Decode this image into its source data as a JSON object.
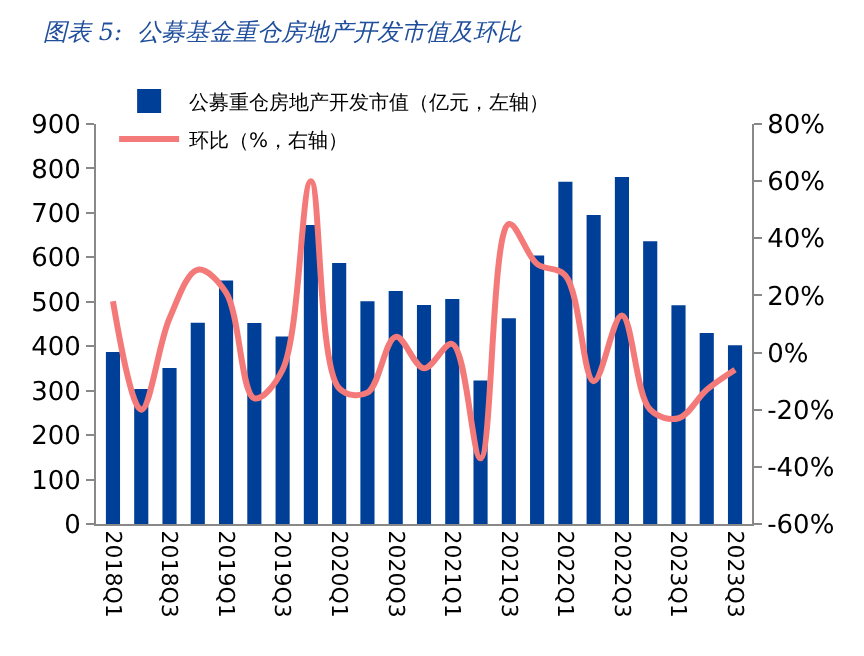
{
  "chart_data": {
    "type": "bar",
    "title": "图表 5:  公募基金重仓房地产开发市值及环比",
    "categories": [
      "2018Q1",
      null,
      "2018Q3",
      null,
      "2019Q1",
      null,
      "2019Q3",
      null,
      "2020Q1",
      null,
      "2020Q3",
      null,
      "2021Q1",
      null,
      "2021Q3",
      null,
      "2022Q1",
      null,
      "2022Q3",
      null,
      "2023Q1",
      null,
      "2023Q3"
    ],
    "series": [
      {
        "name": "公募重仓房地产开发市值（亿元，左轴）",
        "color": "#003f98",
        "values": [
          387,
          304,
          351,
          453,
          548,
          452,
          422,
          673,
          587,
          501,
          524,
          493,
          506,
          323,
          463,
          604,
          770,
          695,
          781,
          636,
          492,
          430,
          402
        ]
      },
      {
        "name": "环比（%，右轴）",
        "type": "line",
        "axis": "y2",
        "color": "#f47a7a",
        "values": [
          18,
          -20,
          12,
          29,
          21,
          -16,
          -6,
          60,
          -12.5,
          -14,
          5.5,
          -5.5,
          3,
          -37,
          45,
          31,
          27,
          -10,
          13,
          -20,
          -23,
          -13,
          -6
        ]
      }
    ],
    "ylim": [
      0,
      900
    ],
    "yticks": [
      0,
      100,
      200,
      300,
      400,
      500,
      600,
      700,
      800,
      900
    ],
    "y2lim": [
      -60,
      80
    ],
    "y2ticks": [
      {
        "value": -60,
        "label": "-60%"
      },
      {
        "value": -40,
        "label": "-40%"
      },
      {
        "value": -20,
        "label": "-20%"
      },
      {
        "value": 0,
        "label": "0%"
      },
      {
        "value": 20,
        "label": "20%"
      },
      {
        "value": 40,
        "label": "40%"
      },
      {
        "value": 60,
        "label": "60%"
      },
      {
        "value": 80,
        "label": "80%"
      }
    ],
    "legend": "top left",
    "grid": false,
    "line_style": "solid",
    "marker": "none"
  }
}
